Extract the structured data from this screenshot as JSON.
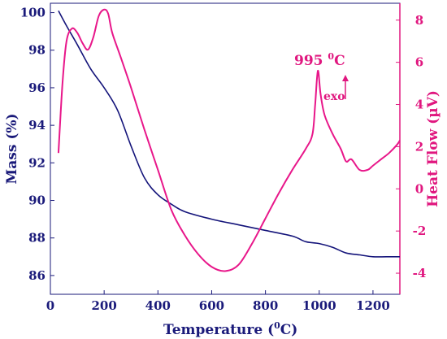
{
  "chart_data": {
    "type": "line",
    "xlabel": "Temperature (",
    "xlabel_sup": "0",
    "xlabel_tail": "C)",
    "ylabel_left": "Mass (%)",
    "ylabel_right": "Heat Flow (µV)",
    "xlim": [
      0,
      1300
    ],
    "ylim_left": [
      85,
      100.5
    ],
    "ylim_right": [
      -5,
      8.8
    ],
    "x_ticks": [
      0,
      200,
      400,
      600,
      800,
      1000,
      1200
    ],
    "x_tick_labels": [
      "0",
      "200",
      "400",
      "600",
      "800",
      "1000",
      "1200"
    ],
    "left_ticks": [
      86,
      88,
      90,
      92,
      94,
      96,
      98,
      100
    ],
    "left_tick_labels": [
      "86",
      "88",
      "90",
      "92",
      "94",
      "96",
      "98",
      "100"
    ],
    "right_ticks": [
      -4,
      -2,
      0,
      2,
      4,
      6,
      8
    ],
    "right_tick_labels": [
      "-4",
      "-2",
      "0",
      "2",
      "4",
      "6",
      "8"
    ],
    "annotations": {
      "peak_label": "995 ",
      "peak_sup": "0",
      "peak_tail": "C",
      "exo_label": "exo"
    },
    "colors": {
      "mass": "#14147a",
      "heat": "#e8178a"
    },
    "series": [
      {
        "axis": "left",
        "x": [
          30,
          60,
          100,
          150,
          200,
          250,
          300,
          350,
          400,
          450,
          500,
          600,
          700,
          800,
          900,
          950,
          1000,
          1050,
          1100,
          1150,
          1200,
          1250,
          1300
        ],
        "values": [
          100.1,
          99.3,
          98.3,
          97.0,
          96.0,
          94.8,
          92.9,
          91.2,
          90.3,
          89.8,
          89.4,
          89.0,
          88.7,
          88.4,
          88.1,
          87.8,
          87.7,
          87.5,
          87.2,
          87.1,
          87.0,
          87.0,
          87.0
        ]
      },
      {
        "axis": "right",
        "x": [
          30,
          45,
          60,
          80,
          100,
          120,
          140,
          160,
          180,
          200,
          215,
          230,
          260,
          300,
          350,
          400,
          450,
          500,
          550,
          600,
          650,
          700,
          750,
          800,
          850,
          900,
          950,
          975,
          985,
          995,
          1005,
          1020,
          1050,
          1080,
          1100,
          1120,
          1150,
          1180,
          1200,
          1230,
          1260,
          1290,
          1300
        ],
        "values": [
          1.7,
          5.0,
          7.0,
          7.6,
          7.4,
          6.9,
          6.6,
          7.2,
          8.2,
          8.5,
          8.3,
          7.4,
          6.3,
          4.8,
          2.8,
          0.9,
          -1.0,
          -2.2,
          -3.1,
          -3.7,
          -3.9,
          -3.6,
          -2.6,
          -1.4,
          -0.2,
          0.9,
          1.9,
          2.6,
          4.0,
          5.6,
          4.5,
          3.5,
          2.6,
          1.9,
          1.3,
          1.4,
          0.9,
          0.9,
          1.1,
          1.4,
          1.7,
          2.1,
          2.3
        ]
      }
    ]
  }
}
